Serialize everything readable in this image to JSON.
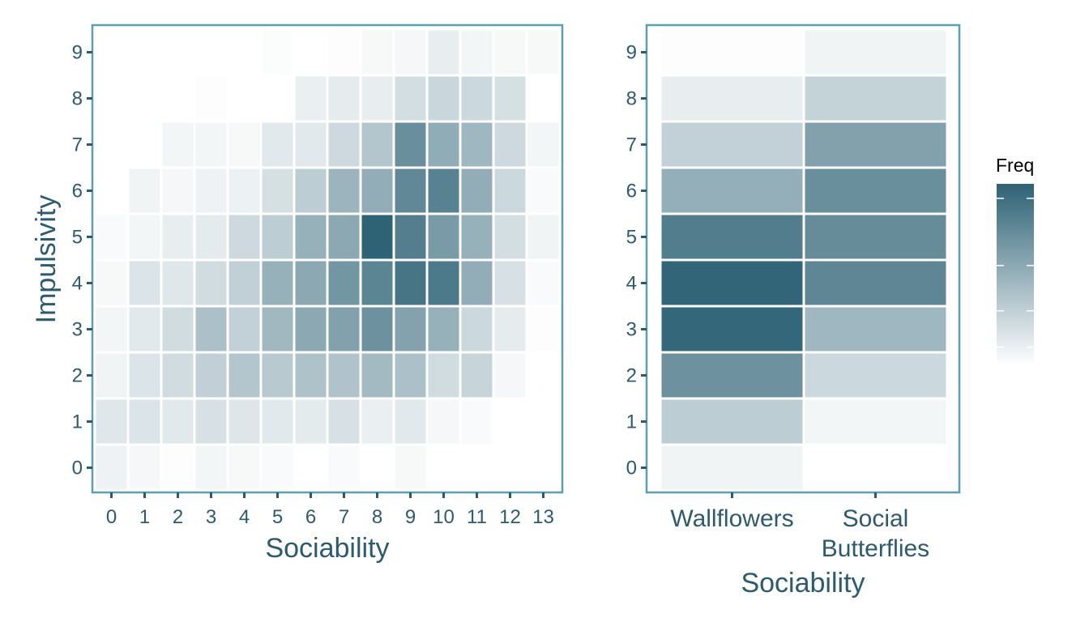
{
  "chart_data": [
    {
      "type": "heatmap",
      "xlabel": "Sociability",
      "ylabel": "Impulsivity",
      "x_categories": [
        "0",
        "1",
        "2",
        "3",
        "4",
        "5",
        "6",
        "7",
        "8",
        "9",
        "10",
        "11",
        "12",
        "13"
      ],
      "y_categories": [
        "0",
        "1",
        "2",
        "3",
        "4",
        "5",
        "6",
        "7",
        "8",
        "9"
      ],
      "values": [
        [
          0.08,
          0.05,
          0.01,
          0.06,
          0.04,
          0.03,
          0.0,
          0.03,
          0.0,
          0.04,
          0.0,
          0.0,
          0.0,
          0.0
        ],
        [
          0.15,
          0.17,
          0.14,
          0.19,
          0.16,
          0.14,
          0.13,
          0.19,
          0.1,
          0.14,
          0.05,
          0.03,
          0.0,
          0.0
        ],
        [
          0.07,
          0.17,
          0.22,
          0.3,
          0.36,
          0.34,
          0.39,
          0.38,
          0.44,
          0.4,
          0.22,
          0.27,
          0.05,
          0.0
        ],
        [
          0.06,
          0.14,
          0.22,
          0.4,
          0.29,
          0.45,
          0.55,
          0.6,
          0.7,
          0.59,
          0.5,
          0.25,
          0.12,
          0.01
        ],
        [
          0.04,
          0.17,
          0.15,
          0.22,
          0.3,
          0.5,
          0.55,
          0.67,
          0.78,
          0.88,
          0.85,
          0.52,
          0.19,
          0.03
        ],
        [
          0.03,
          0.06,
          0.11,
          0.13,
          0.24,
          0.32,
          0.5,
          0.55,
          1.0,
          0.82,
          0.64,
          0.5,
          0.21,
          0.07
        ],
        [
          0.0,
          0.07,
          0.05,
          0.08,
          0.09,
          0.2,
          0.32,
          0.48,
          0.52,
          0.76,
          0.8,
          0.52,
          0.25,
          0.03
        ],
        [
          0.0,
          0.0,
          0.06,
          0.06,
          0.04,
          0.14,
          0.14,
          0.24,
          0.36,
          0.72,
          0.53,
          0.46,
          0.24,
          0.06
        ],
        [
          0.0,
          0.0,
          0.0,
          0.01,
          0.0,
          0.0,
          0.1,
          0.12,
          0.11,
          0.21,
          0.26,
          0.25,
          0.2,
          0.0
        ],
        [
          0.0,
          0.0,
          0.0,
          0.0,
          0.0,
          0.02,
          0.0,
          0.01,
          0.04,
          0.05,
          0.11,
          0.06,
          0.04,
          0.04
        ]
      ]
    },
    {
      "type": "heatmap",
      "xlabel": "Sociability",
      "ylabel": "",
      "x_categories": [
        "Wallflowers",
        "Social\nButterflies"
      ],
      "y_categories": [
        "0",
        "1",
        "2",
        "3",
        "4",
        "5",
        "6",
        "7",
        "8",
        "9"
      ],
      "values": [
        [
          0.07,
          0.0
        ],
        [
          0.32,
          0.06
        ],
        [
          0.7,
          0.25
        ],
        [
          0.97,
          0.46
        ],
        [
          0.98,
          0.77
        ],
        [
          0.83,
          0.73
        ],
        [
          0.51,
          0.72
        ],
        [
          0.29,
          0.6
        ],
        [
          0.11,
          0.28
        ],
        [
          0.01,
          0.07
        ]
      ]
    }
  ],
  "legend": {
    "title": "Freq",
    "colors": {
      "low": "#ffffff",
      "high": "#2e6275"
    }
  },
  "colors": {
    "panel_border": "#5d9fb0",
    "text": "#2e5a6e"
  }
}
